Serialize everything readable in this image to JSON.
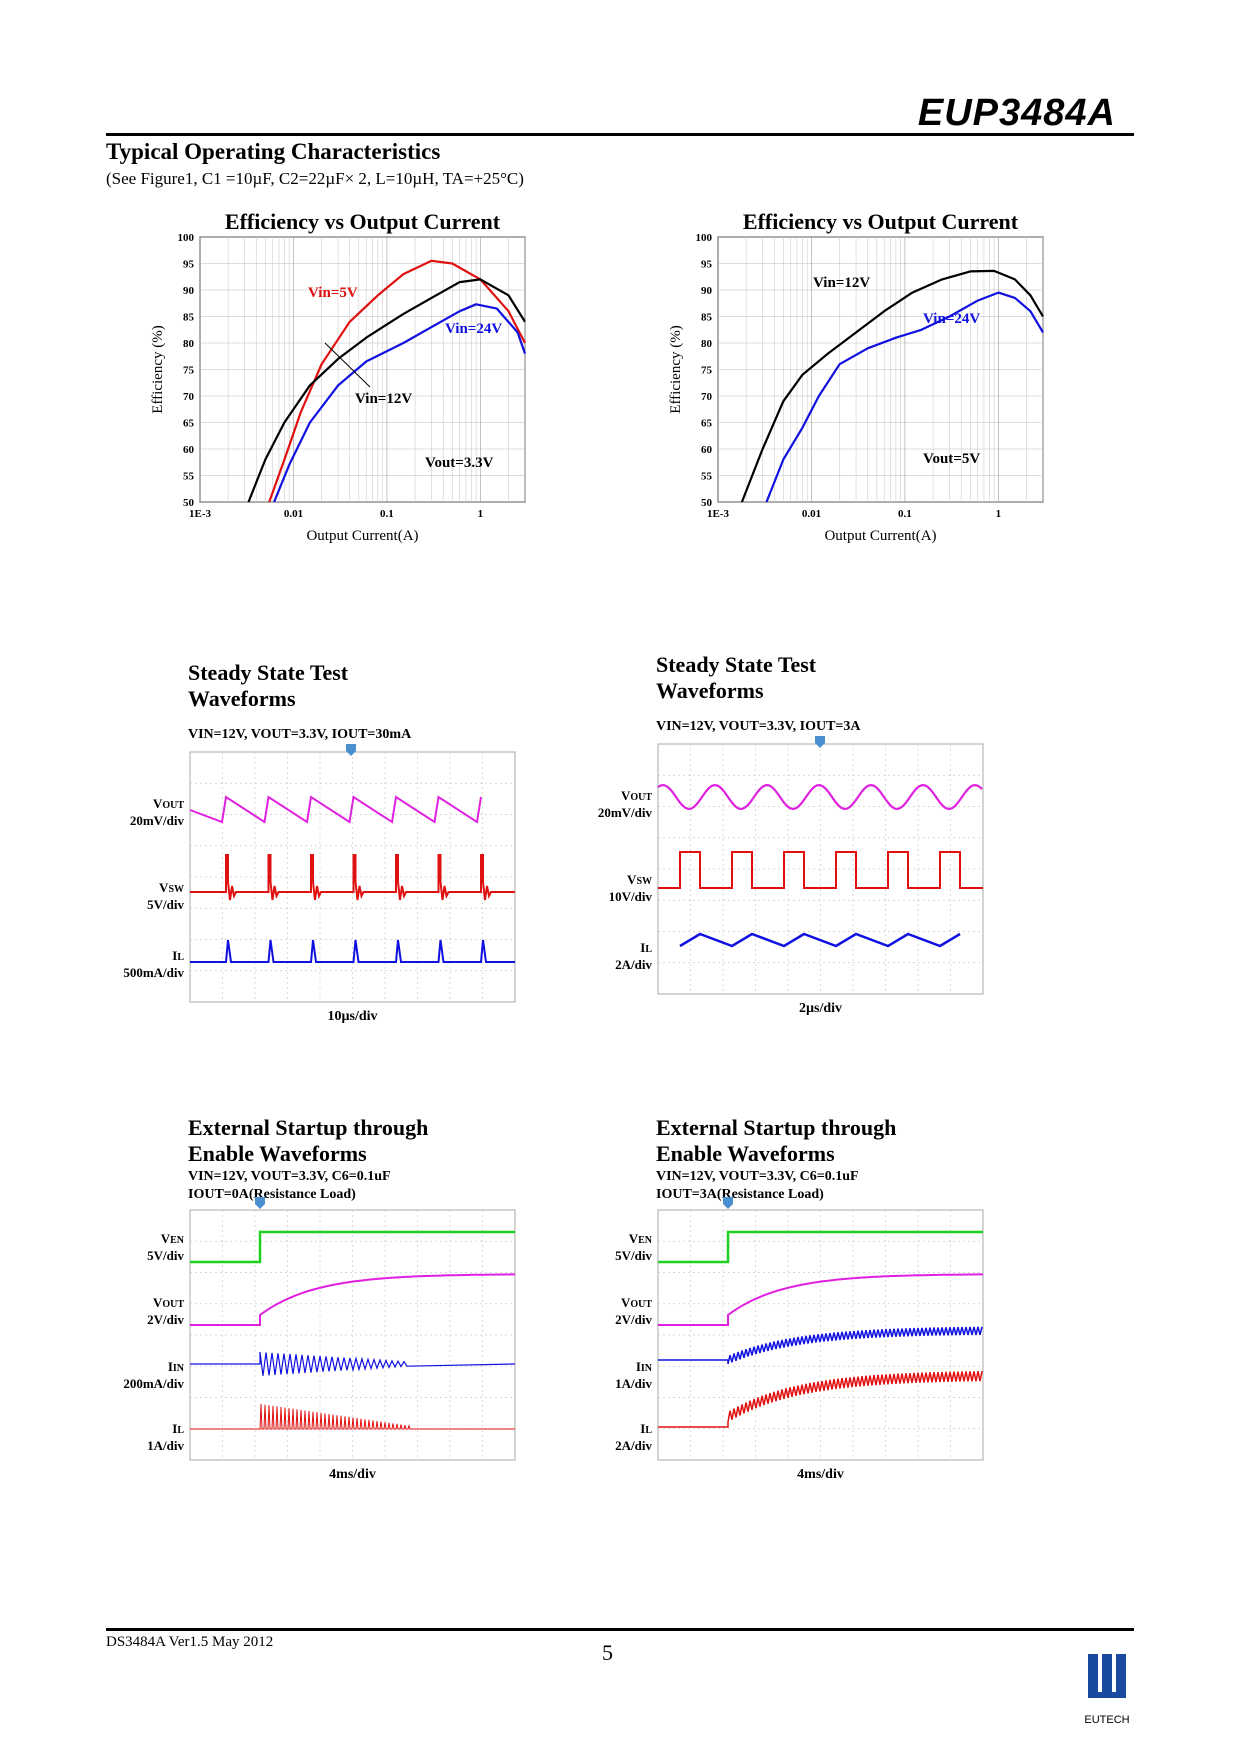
{
  "header": {
    "part_number": "EUP3484A",
    "section_title": "Typical Operating Characteristics",
    "conditions": "(See Figure1, C1 =10µF, C2=22µF× 2, L=10µH, TA=+25°C)"
  },
  "chart_data": [
    {
      "type": "line",
      "title": "Efficiency vs Output Current",
      "xlabel": "Output Current(A)",
      "ylabel": "Efficiency (%)",
      "xscale": "log",
      "xlim": [
        0.001,
        3
      ],
      "ylim": [
        50,
        100
      ],
      "yticks": [
        "100",
        "95",
        "90",
        "85",
        "80",
        "75",
        "70",
        "65",
        "60",
        "55",
        "50"
      ],
      "xticks": [
        "1E-3",
        "0.01",
        "0.1",
        "1"
      ],
      "annotation": "Vout=3.3V",
      "series": [
        {
          "name": "Vin=5V",
          "color": "#e01010",
          "x": [
            0.0055,
            0.008,
            0.012,
            0.02,
            0.04,
            0.08,
            0.15,
            0.3,
            0.5,
            1,
            2,
            3
          ],
          "y": [
            50,
            58,
            67,
            76,
            84,
            89,
            93,
            95.5,
            95,
            92,
            86,
            80
          ]
        },
        {
          "name": "Vin=12V",
          "color": "#000000",
          "x": [
            0.0033,
            0.005,
            0.008,
            0.015,
            0.03,
            0.06,
            0.15,
            0.3,
            0.6,
            1,
            2,
            3
          ],
          "y": [
            50,
            58,
            65,
            72,
            77,
            81,
            85.5,
            88.5,
            91.5,
            92,
            89,
            84
          ]
        },
        {
          "name": "Vin=24V",
          "color": "#1010e0",
          "x": [
            0.0062,
            0.009,
            0.015,
            0.03,
            0.06,
            0.15,
            0.3,
            0.6,
            0.9,
            1.5,
            2.5,
            3
          ],
          "y": [
            50,
            57,
            65,
            72,
            76.5,
            80,
            83,
            86,
            87.3,
            86.5,
            82,
            78
          ]
        }
      ]
    },
    {
      "type": "line",
      "title": "Efficiency vs Output Current",
      "xlabel": "Output Current(A)",
      "ylabel": "Efficiency (%)",
      "xscale": "log",
      "xlim": [
        0.001,
        3
      ],
      "ylim": [
        50,
        100
      ],
      "yticks": [
        "100",
        "95",
        "90",
        "85",
        "80",
        "75",
        "70",
        "65",
        "60",
        "55",
        "50"
      ],
      "xticks": [
        "1E-3",
        "0.01",
        "0.1",
        "1"
      ],
      "annotation": "Vout=5V",
      "series": [
        {
          "name": "Vin=12V",
          "color": "#000000",
          "x": [
            0.0018,
            0.003,
            0.005,
            0.008,
            0.015,
            0.03,
            0.06,
            0.12,
            0.25,
            0.5,
            0.9,
            1.5,
            2.2,
            3
          ],
          "y": [
            50,
            60,
            69,
            74,
            78,
            82,
            86,
            89.5,
            92,
            93.5,
            93.6,
            92,
            89,
            85
          ]
        },
        {
          "name": "Vin=24V",
          "color": "#1010e0",
          "x": [
            0.0033,
            0.005,
            0.008,
            0.012,
            0.02,
            0.04,
            0.08,
            0.15,
            0.3,
            0.6,
            1,
            1.5,
            2.2,
            3
          ],
          "y": [
            50,
            58,
            64,
            70,
            76,
            79,
            81,
            82.5,
            85,
            88,
            89.5,
            88.5,
            86,
            82
          ]
        }
      ]
    }
  ],
  "waveforms": [
    {
      "title1": "Steady State Test",
      "title2": "Waveforms",
      "conditions": "VIN=12V, VOUT=3.3V, IOUT=30mA",
      "timescale": "10µs/div",
      "channels": [
        {
          "name": "VOUT",
          "scale": "20mV/div",
          "color": "#e020e0"
        },
        {
          "name": "VSW",
          "scale": "5V/div",
          "color": "#e01010"
        },
        {
          "name": "IL",
          "scale": "500mA/div",
          "color": "#1010e0"
        }
      ]
    },
    {
      "title1": "Steady State Test",
      "title2": "Waveforms",
      "conditions": "VIN=12V, VOUT=3.3V, IOUT=3A",
      "timescale": "2µs/div",
      "channels": [
        {
          "name": "VOUT",
          "scale": "20mV/div",
          "color": "#e020e0"
        },
        {
          "name": "VSW",
          "scale": "10V/div",
          "color": "#e01010"
        },
        {
          "name": "IL",
          "scale": "2A/div",
          "color": "#1010e0"
        }
      ]
    },
    {
      "title1": "External Startup through",
      "title2": "Enable Waveforms",
      "conditions": "VIN=12V, VOUT=3.3V, C6=0.1uF",
      "conditions2": "IOUT=0A(Resistance Load)",
      "timescale": "4ms/div",
      "channels": [
        {
          "name": "VEN",
          "scale": "5V/div",
          "color": "#20d020"
        },
        {
          "name": "VOUT",
          "scale": "2V/div",
          "color": "#e020e0"
        },
        {
          "name": "IIN",
          "scale": "200mA/div",
          "color": "#1010e0"
        },
        {
          "name": "IL",
          "scale": "1A/div",
          "color": "#e01010"
        }
      ]
    },
    {
      "title1": "External Startup through",
      "title2": "Enable Waveforms",
      "conditions": "VIN=12V, VOUT=3.3V, C6=0.1uF",
      "conditions2": "IOUT=3A(Resistance Load)",
      "timescale": "4ms/div",
      "channels": [
        {
          "name": "VEN",
          "scale": "5V/div",
          "color": "#20d020"
        },
        {
          "name": "VOUT",
          "scale": "2V/div",
          "color": "#e020e0"
        },
        {
          "name": "IIN",
          "scale": "1A/div",
          "color": "#1010e0"
        },
        {
          "name": "IL",
          "scale": "2A/div",
          "color": "#e01010"
        }
      ]
    }
  ],
  "footer": {
    "doc_id": "DS3484A Ver1.5 May 2012",
    "page_number": "5",
    "logo_text": "EUTECH"
  }
}
